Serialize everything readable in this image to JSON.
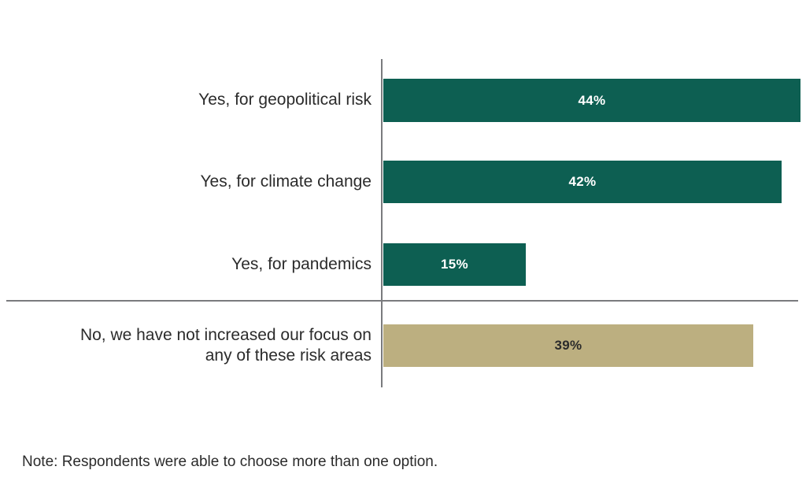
{
  "chart_data": {
    "type": "bar",
    "orientation": "horizontal",
    "title": "",
    "xlabel": "",
    "ylabel": "",
    "xlim": [
      0,
      44
    ],
    "grid": false,
    "legend": false,
    "categories": [
      "Yes, for geopolitical risk",
      "Yes, for climate change",
      "Yes, for pandemics",
      "No, we have not increased our focus on any of these risk areas"
    ],
    "values": [
      44,
      42,
      15,
      39
    ],
    "rows": [
      {
        "label": "Yes, for geopolitical risk",
        "value": 44,
        "value_label": "44%",
        "group": "yes"
      },
      {
        "label": "Yes, for climate change",
        "value": 42,
        "value_label": "42%",
        "group": "yes"
      },
      {
        "label": "Yes, for pandemics",
        "value": 15,
        "value_label": "15%",
        "group": "yes"
      },
      {
        "label": "No, we have not increased our focus on any of these risk areas",
        "value": 39,
        "value_label": "39%",
        "group": "no"
      }
    ],
    "note": "Note: Respondents were able to choose more than one option.",
    "colors": {
      "yes_bars": "#0d5f52",
      "no_bar": "#bcaf80",
      "axis_line": "#7a7b7e",
      "label_text": "#2b2b2b",
      "value_text_on_green": "#ffffff",
      "value_text_on_tan": "#2b2b2b"
    }
  }
}
